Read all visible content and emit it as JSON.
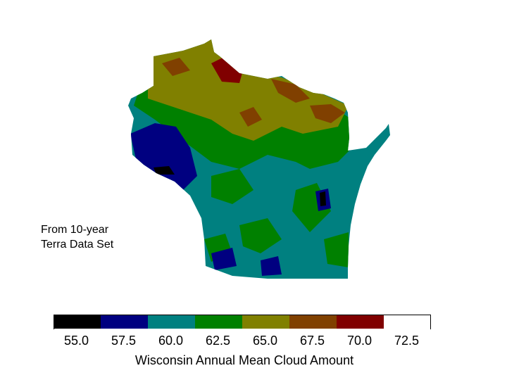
{
  "map": {
    "region": "Wisconsin",
    "colors": {
      "c55": "#000000",
      "c575": "#000080",
      "c60": "#008080",
      "c625": "#008000",
      "c65": "#808000",
      "c675": "#804000",
      "c70": "#800000",
      "c725": "#ffffff"
    }
  },
  "note": {
    "line1": "From 10-year",
    "line2": "Terra Data Set"
  },
  "colorbar": {
    "title": "Wisconsin Annual Mean Cloud Amount",
    "bins": [
      {
        "value": "55.0",
        "color": "#000000"
      },
      {
        "value": "57.5",
        "color": "#000080"
      },
      {
        "value": "60.0",
        "color": "#008080"
      },
      {
        "value": "62.5",
        "color": "#008000"
      },
      {
        "value": "65.0",
        "color": "#808000"
      },
      {
        "value": "67.5",
        "color": "#804000"
      },
      {
        "value": "70.0",
        "color": "#800000"
      },
      {
        "value": "72.5",
        "color": "#ffffff"
      }
    ]
  }
}
